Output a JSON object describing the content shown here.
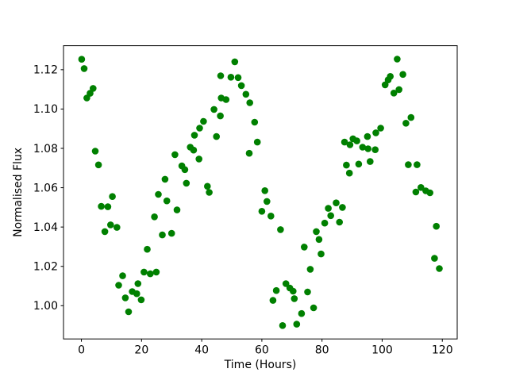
{
  "figure": {
    "background": "#ffffff",
    "spine_color": "#000000"
  },
  "chart_data": {
    "type": "scatter",
    "title": "",
    "xlabel": "Time (Hours)",
    "ylabel": "Normalised Flux",
    "marker_color": "#008000",
    "marker_radius_px": 4.3,
    "grid": false,
    "legend": null,
    "xlim": [
      -5.95,
      124.95
    ],
    "ylim": [
      0.9831,
      1.1322
    ],
    "x_ticks": {
      "values": [
        0,
        20,
        40,
        60,
        80,
        100,
        120
      ],
      "labels": [
        "0",
        "20",
        "40",
        "60",
        "80",
        "100",
        "120"
      ]
    },
    "y_ticks": {
      "values": [
        1.0,
        1.02,
        1.04,
        1.06,
        1.08,
        1.1,
        1.12
      ],
      "labels": [
        "1.00",
        "1.02",
        "1.04",
        "1.06",
        "1.08",
        "1.10",
        "1.12"
      ]
    },
    "points": [
      [
        0.1,
        1.1253
      ],
      [
        0.9,
        1.1206
      ],
      [
        1.8,
        1.1056
      ],
      [
        2.9,
        1.108
      ],
      [
        3.9,
        1.1105
      ],
      [
        4.6,
        1.0786
      ],
      [
        5.7,
        1.0716
      ],
      [
        6.6,
        1.0505
      ],
      [
        7.8,
        1.0377
      ],
      [
        8.8,
        1.0503
      ],
      [
        9.7,
        1.0411
      ],
      [
        10.3,
        1.0555
      ],
      [
        11.8,
        1.0398
      ],
      [
        12.4,
        1.0104
      ],
      [
        13.7,
        1.0152
      ],
      [
        14.6,
        1.004
      ],
      [
        15.7,
        0.9969
      ],
      [
        16.9,
        1.0072
      ],
      [
        18.4,
        1.0061
      ],
      [
        18.8,
        1.0112
      ],
      [
        19.9,
        1.003
      ],
      [
        20.8,
        1.0171
      ],
      [
        21.9,
        1.0287
      ],
      [
        22.9,
        1.0162
      ],
      [
        24.3,
        1.0452
      ],
      [
        24.9,
        1.0171
      ],
      [
        25.6,
        1.0566
      ],
      [
        26.9,
        1.036
      ],
      [
        27.8,
        1.0643
      ],
      [
        28.4,
        1.0533
      ],
      [
        30.0,
        1.0368
      ],
      [
        31.1,
        1.0768
      ],
      [
        31.8,
        1.0487
      ],
      [
        33.4,
        1.0711
      ],
      [
        34.4,
        1.0692
      ],
      [
        34.9,
        1.0623
      ],
      [
        36.2,
        1.0806
      ],
      [
        37.3,
        1.0791
      ],
      [
        37.6,
        1.0867
      ],
      [
        39.1,
        1.0746
      ],
      [
        39.3,
        1.0903
      ],
      [
        40.6,
        1.0937
      ],
      [
        41.9,
        1.0607
      ],
      [
        42.5,
        1.0576
      ],
      [
        44.1,
        1.0998
      ],
      [
        44.9,
        1.086
      ],
      [
        46.2,
        1.0965
      ],
      [
        46.3,
        1.1169
      ],
      [
        46.5,
        1.1056
      ],
      [
        48.1,
        1.1048
      ],
      [
        49.7,
        1.1162
      ],
      [
        51.0,
        1.124
      ],
      [
        52.1,
        1.116
      ],
      [
        53.2,
        1.1119
      ],
      [
        54.7,
        1.1075
      ],
      [
        55.8,
        1.0775
      ],
      [
        56.0,
        1.1032
      ],
      [
        57.6,
        1.0933
      ],
      [
        58.5,
        1.0832
      ],
      [
        60.0,
        1.048
      ],
      [
        61.0,
        1.0585
      ],
      [
        61.7,
        1.053
      ],
      [
        63.0,
        1.0456
      ],
      [
        66.2,
        1.0387
      ],
      [
        63.7,
        1.0027
      ],
      [
        64.8,
        1.0077
      ],
      [
        66.9,
        0.9899
      ],
      [
        68.0,
        1.0112
      ],
      [
        69.3,
        1.009
      ],
      [
        70.4,
        1.0074
      ],
      [
        70.8,
        1.0036
      ],
      [
        71.6,
        0.9906
      ],
      [
        73.2,
        0.996
      ],
      [
        74.1,
        1.0298
      ],
      [
        75.2,
        1.007
      ],
      [
        76.1,
        1.0185
      ],
      [
        77.2,
        0.9989
      ],
      [
        78.1,
        1.0377
      ],
      [
        79.0,
        1.0337
      ],
      [
        79.7,
        1.0263
      ],
      [
        80.9,
        1.042
      ],
      [
        82.1,
        1.0495
      ],
      [
        82.9,
        1.0458
      ],
      [
        84.7,
        1.0523
      ],
      [
        85.8,
        1.0425
      ],
      [
        86.8,
        1.05
      ],
      [
        87.5,
        1.0832
      ],
      [
        88.1,
        1.0715
      ],
      [
        89.1,
        1.0674
      ],
      [
        89.3,
        1.0818
      ],
      [
        90.3,
        1.0849
      ],
      [
        91.6,
        1.0838
      ],
      [
        92.2,
        1.072
      ],
      [
        93.5,
        1.0806
      ],
      [
        95.1,
        1.086
      ],
      [
        95.3,
        1.0798
      ],
      [
        96.0,
        1.0733
      ],
      [
        97.7,
        1.0793
      ],
      [
        97.9,
        1.0879
      ],
      [
        99.5,
        1.0903
      ],
      [
        101.0,
        1.1123
      ],
      [
        102.0,
        1.1148
      ],
      [
        102.7,
        1.1166
      ],
      [
        103.9,
        1.1081
      ],
      [
        105.0,
        1.1254
      ],
      [
        105.6,
        1.1099
      ],
      [
        106.9,
        1.1176
      ],
      [
        107.9,
        1.0928
      ],
      [
        108.7,
        1.0717
      ],
      [
        109.6,
        1.0957
      ],
      [
        111.2,
        1.0578
      ],
      [
        111.6,
        1.0717
      ],
      [
        112.9,
        1.0601
      ],
      [
        114.5,
        1.0584
      ],
      [
        115.9,
        1.0574
      ],
      [
        117.4,
        1.0241
      ],
      [
        118.0,
        1.0404
      ],
      [
        119.0,
        1.0189
      ]
    ]
  }
}
